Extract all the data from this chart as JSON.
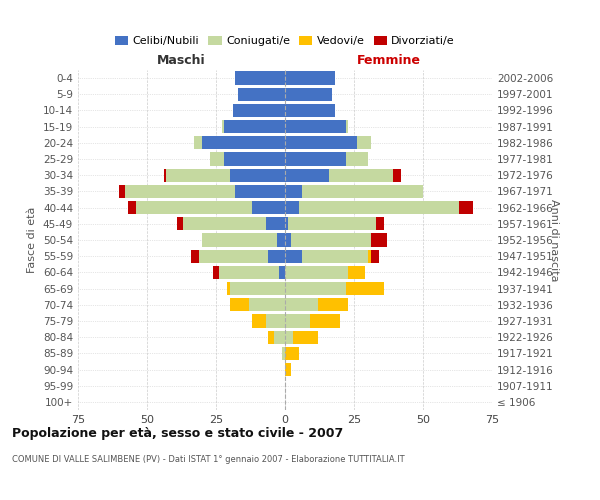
{
  "age_groups": [
    "100+",
    "95-99",
    "90-94",
    "85-89",
    "80-84",
    "75-79",
    "70-74",
    "65-69",
    "60-64",
    "55-59",
    "50-54",
    "45-49",
    "40-44",
    "35-39",
    "30-34",
    "25-29",
    "20-24",
    "15-19",
    "10-14",
    "5-9",
    "0-4"
  ],
  "birth_years": [
    "≤ 1906",
    "1907-1911",
    "1912-1916",
    "1917-1921",
    "1922-1926",
    "1927-1931",
    "1932-1936",
    "1937-1941",
    "1942-1946",
    "1947-1951",
    "1952-1956",
    "1957-1961",
    "1962-1966",
    "1967-1971",
    "1972-1976",
    "1977-1981",
    "1982-1986",
    "1987-1991",
    "1992-1996",
    "1997-2001",
    "2002-2006"
  ],
  "male": {
    "celibi": [
      0,
      0,
      0,
      0,
      0,
      0,
      0,
      0,
      2,
      6,
      3,
      7,
      12,
      18,
      20,
      22,
      30,
      22,
      19,
      17,
      18
    ],
    "coniugati": [
      0,
      0,
      0,
      1,
      4,
      7,
      13,
      20,
      22,
      25,
      27,
      30,
      42,
      40,
      23,
      5,
      3,
      1,
      0,
      0,
      0
    ],
    "vedovi": [
      0,
      0,
      0,
      0,
      2,
      5,
      7,
      1,
      0,
      0,
      0,
      0,
      0,
      0,
      0,
      0,
      0,
      0,
      0,
      0,
      0
    ],
    "divorziati": [
      0,
      0,
      0,
      0,
      0,
      0,
      0,
      0,
      2,
      3,
      0,
      2,
      3,
      2,
      1,
      0,
      0,
      0,
      0,
      0,
      0
    ]
  },
  "female": {
    "nubili": [
      0,
      0,
      0,
      0,
      0,
      0,
      0,
      0,
      0,
      6,
      2,
      1,
      5,
      6,
      16,
      22,
      26,
      22,
      18,
      17,
      18
    ],
    "coniugate": [
      0,
      0,
      0,
      0,
      3,
      9,
      12,
      22,
      23,
      24,
      29,
      32,
      58,
      44,
      23,
      8,
      5,
      1,
      0,
      0,
      0
    ],
    "vedove": [
      0,
      0,
      2,
      5,
      9,
      11,
      11,
      14,
      6,
      1,
      0,
      0,
      0,
      0,
      0,
      0,
      0,
      0,
      0,
      0,
      0
    ],
    "divorziate": [
      0,
      0,
      0,
      0,
      0,
      0,
      0,
      0,
      0,
      3,
      6,
      3,
      5,
      0,
      3,
      0,
      0,
      0,
      0,
      0,
      0
    ]
  },
  "colors": {
    "celibi": "#4472c4",
    "coniugati": "#c5d9a0",
    "vedovi": "#ffc000",
    "divorziati": "#c00000"
  },
  "xlim": 75,
  "title": "Popolazione per età, sesso e stato civile - 2007",
  "subtitle": "COMUNE DI VALLE SALIMBENE (PV) - Dati ISTAT 1° gennaio 2007 - Elaborazione TUTTITALIA.IT",
  "ylabel_left": "Fasce di età",
  "ylabel_right": "Anni di nascita",
  "xlabel_left": "Maschi",
  "xlabel_right": "Femmine",
  "bg_color": "#ffffff",
  "grid_color": "#cccccc",
  "text_color": "#555555",
  "title_color": "#111111",
  "maschi_color": "#333333",
  "femmine_color": "#cc0000"
}
